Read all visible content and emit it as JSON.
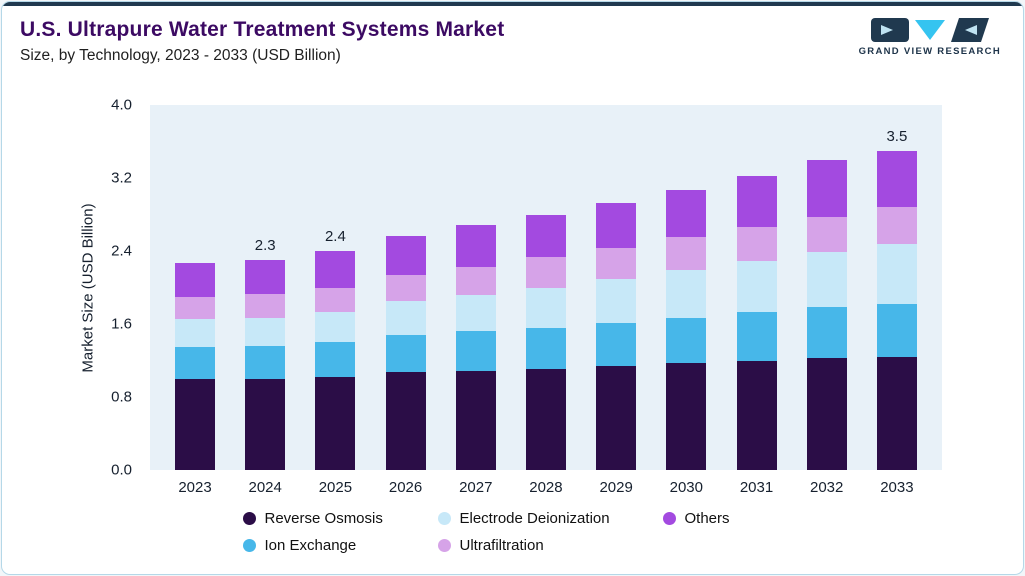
{
  "header": {
    "title": "U.S. Ultrapure Water Treatment Systems Market",
    "subtitle": "Size, by Technology, 2023 - 2033 (USD Billion)",
    "logo_text": "GRAND VIEW RESEARCH"
  },
  "chart_data": {
    "type": "bar",
    "stacked": true,
    "title": "U.S. Ultrapure Water Treatment Systems Market Size, by Technology, 2023 - 2033 (USD Billion)",
    "categories": [
      "2023",
      "2024",
      "2025",
      "2026",
      "2027",
      "2028",
      "2029",
      "2030",
      "2031",
      "2032",
      "2033"
    ],
    "series": [
      {
        "name": "Reverse Osmosis",
        "color": "#2B0D47",
        "values": [
          1.0,
          1.0,
          1.02,
          1.07,
          1.09,
          1.11,
          1.14,
          1.17,
          1.2,
          1.23,
          1.24
        ]
      },
      {
        "name": "Ion Exchange",
        "color": "#47B7E9",
        "values": [
          0.35,
          0.36,
          0.38,
          0.41,
          0.43,
          0.45,
          0.47,
          0.5,
          0.53,
          0.56,
          0.58
        ]
      },
      {
        "name": "Electrode Deionization",
        "color": "#C7E8F8",
        "values": [
          0.3,
          0.31,
          0.33,
          0.37,
          0.4,
          0.44,
          0.48,
          0.52,
          0.56,
          0.6,
          0.66
        ]
      },
      {
        "name": "Ultrafiltration",
        "color": "#D6A3E8",
        "values": [
          0.25,
          0.26,
          0.27,
          0.29,
          0.31,
          0.33,
          0.34,
          0.36,
          0.37,
          0.38,
          0.4
        ]
      },
      {
        "name": "Others",
        "color": "#A34AE0",
        "values": [
          0.37,
          0.37,
          0.4,
          0.42,
          0.45,
          0.47,
          0.5,
          0.52,
          0.56,
          0.63,
          0.62
        ]
      }
    ],
    "value_labels": [
      "",
      "2.3",
      "2.4",
      "",
      "",
      "",
      "",
      "",
      "",
      "",
      "3.5"
    ],
    "ylabel": "Market Size (USD Billion)",
    "ylim": [
      0,
      4.0
    ],
    "yticks": [
      "4.0",
      "3.2",
      "2.4",
      "1.6",
      "0.8",
      "0.0"
    ],
    "grid": false,
    "legend_position": "bottom"
  },
  "legend": {
    "items": [
      {
        "label": "Reverse Osmosis",
        "color": "#2B0D47"
      },
      {
        "label": "Electrode Deionization",
        "color": "#C7E8F8"
      },
      {
        "label": "Others",
        "color": "#A34AE0"
      },
      {
        "label": "Ion Exchange",
        "color": "#47B7E9"
      },
      {
        "label": "Ultrafiltration",
        "color": "#D6A3E8"
      }
    ]
  }
}
